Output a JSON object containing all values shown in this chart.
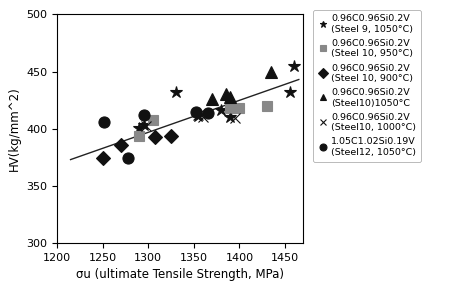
{
  "title": "",
  "xlabel": "σu (ultimate Tensile Strength, MPa)",
  "ylabel": "HV(kg/mm^2)",
  "xlim": [
    1200,
    1470
  ],
  "ylim": [
    300,
    500
  ],
  "xticks": [
    1200,
    1250,
    1300,
    1350,
    1400,
    1450
  ],
  "yticks": [
    300,
    350,
    400,
    450,
    500
  ],
  "series": [
    {
      "label": "0.96C0.96Si0.2V\n(Steel 9, 1050°C)",
      "marker": "*",
      "color": "#111111",
      "markersize": 9,
      "x": [
        1290,
        1295,
        1330,
        1355,
        1380,
        1390,
        1455,
        1460
      ],
      "y": [
        401,
        403,
        432,
        411,
        416,
        410,
        432,
        455
      ]
    },
    {
      "label": "0.96C0.96Si0.2V\n(Steel 10, 950°C)",
      "marker": "s",
      "color": "#888888",
      "markersize": 7,
      "x": [
        1290,
        1305,
        1390,
        1400,
        1430
      ],
      "y": [
        394,
        408,
        418,
        418,
        420
      ]
    },
    {
      "label": "0.96C0.96Si0.2V\n(Steel 10, 900°C)",
      "marker": "D",
      "color": "#111111",
      "markersize": 7,
      "x": [
        1250,
        1270,
        1308,
        1325
      ],
      "y": [
        374,
        386,
        393,
        394
      ]
    },
    {
      "label": "0.96C0.96Si0.2V\n(Steel10)1050°C",
      "marker": "^",
      "color": "#111111",
      "markersize": 8,
      "x": [
        1370,
        1385,
        1390,
        1435
      ],
      "y": [
        426,
        430,
        428,
        450
      ]
    },
    {
      "label": "0.96C0.96Si0.2V\n(Steel10, 1000°C)",
      "marker": "x",
      "color": "#111111",
      "markersize": 7,
      "x": [
        1298,
        1355,
        1360,
        1395
      ],
      "y": [
        402,
        412,
        410,
        409
      ]
    },
    {
      "label": "1.05C1.02Si0.19V\n(Steel12, 1050°C)",
      "marker": "o",
      "color": "#111111",
      "markersize": 8,
      "x": [
        1252,
        1278,
        1295,
        1352,
        1365
      ],
      "y": [
        406,
        374,
        412,
        415,
        414
      ]
    }
  ],
  "trendline": {
    "x": [
      1215,
      1465
    ],
    "y": [
      373,
      443
    ]
  },
  "background_color": "#ffffff",
  "legend_fontsize": 6.8,
  "axis_label_fontsize": 8.5,
  "tick_fontsize": 8
}
